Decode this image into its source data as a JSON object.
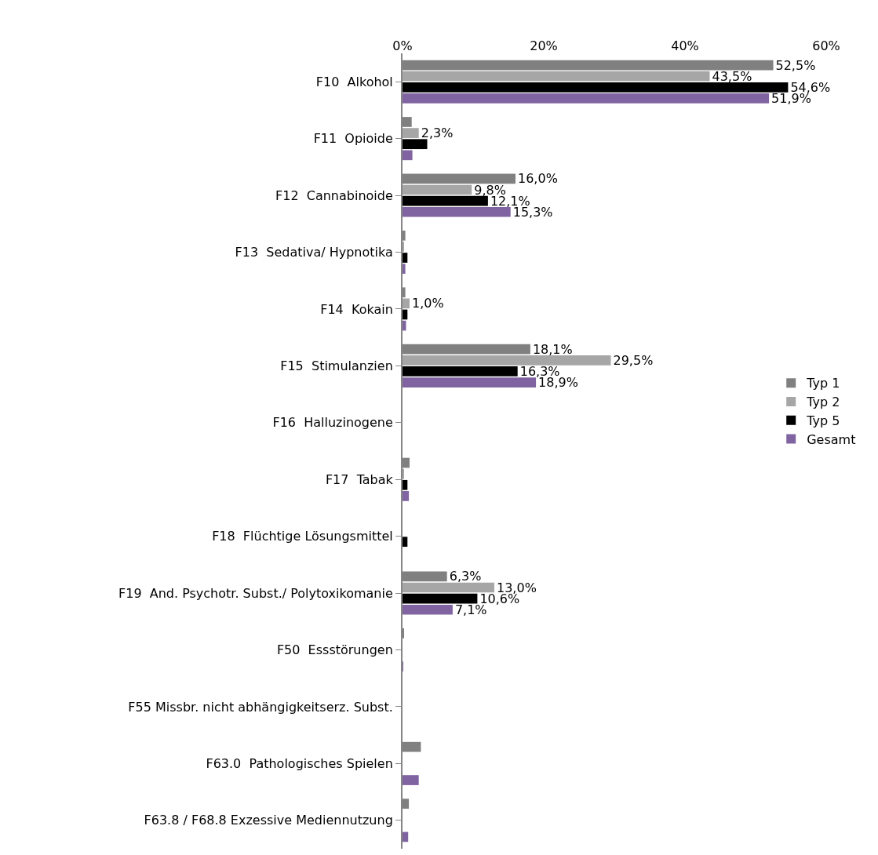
{
  "chart_data": {
    "type": "bar",
    "orientation": "horizontal",
    "categories": [
      "F10  Alkohol",
      "F11  Opioide",
      "F12  Cannabinoide",
      "F13  Sedativa/ Hypnotika",
      "F14  Kokain",
      "F15  Stimulanzien",
      "F16  Halluzinogene",
      "F17  Tabak",
      "F18  Flüchtige Lösungsmittel",
      "F19  And. Psychotr. Subst./ Polytoxikomanie",
      "F50  Essstörungen",
      "F55 Missbr. nicht abhängigkeitserz. Subst.",
      "F63.0  Pathologisches Spielen",
      "F63.8 / F68.8 Exzessive Mediennutzung"
    ],
    "series": [
      {
        "name": "Typ 1",
        "color": "#808080",
        "values": [
          52.5,
          1.3,
          16.0,
          0.4,
          0.4,
          18.1,
          0,
          1.0,
          0,
          6.3,
          0.2,
          0,
          2.6,
          0.9
        ],
        "value_labels": [
          "52,5%",
          null,
          "16,0%",
          null,
          null,
          "18,1%",
          null,
          null,
          null,
          "6,3%",
          null,
          null,
          null,
          null
        ]
      },
      {
        "name": "Typ 2",
        "color": "#a6a6a6",
        "values": [
          43.5,
          2.3,
          9.8,
          0.2,
          1.0,
          29.5,
          0,
          0.2,
          0,
          13.0,
          null,
          0,
          0,
          0
        ],
        "value_labels": [
          "43,5%",
          "2,3%",
          "9,8%",
          null,
          "1,0%",
          "29,5%",
          null,
          null,
          null,
          "13,0%",
          null,
          null,
          null,
          null
        ]
      },
      {
        "name": "Typ 5",
        "color": "#000000",
        "values": [
          54.6,
          3.5,
          12.1,
          0.7,
          0.7,
          16.3,
          0,
          0.7,
          0.7,
          10.6,
          0,
          0,
          0,
          0
        ],
        "value_labels": [
          "54,6%",
          null,
          "12,1%",
          null,
          null,
          "16,3%",
          null,
          null,
          null,
          "10,6%",
          null,
          null,
          null,
          null
        ]
      },
      {
        "name": "Gesamt",
        "color": "#8064a2",
        "values": [
          51.9,
          1.4,
          15.3,
          0.4,
          0.5,
          18.9,
          0,
          0.9,
          0,
          7.1,
          0.1,
          0,
          2.3,
          0.8
        ],
        "value_labels": [
          "51,9%",
          null,
          "15,3%",
          null,
          null,
          "18,9%",
          null,
          null,
          null,
          "7,1%",
          null,
          null,
          null,
          null
        ]
      }
    ],
    "xlim": [
      0,
      60
    ],
    "xticks": [
      {
        "value": 0,
        "label": "0%"
      },
      {
        "value": 20,
        "label": "20%"
      },
      {
        "value": 40,
        "label": "40%"
      },
      {
        "value": 60,
        "label": "60%"
      }
    ],
    "grid": false,
    "legend": "right"
  }
}
